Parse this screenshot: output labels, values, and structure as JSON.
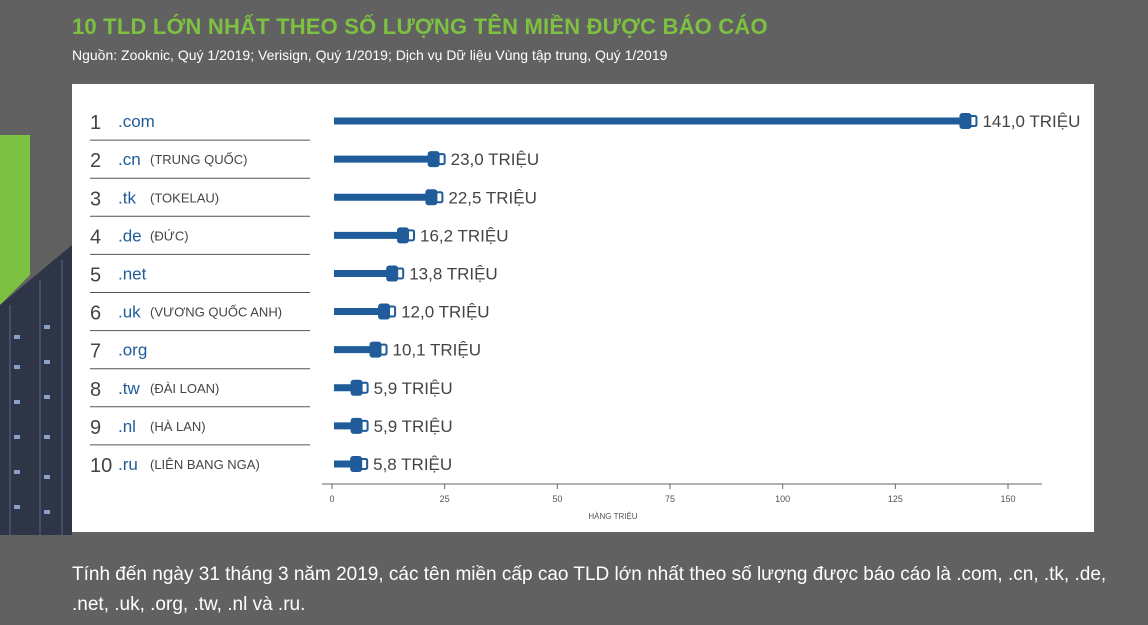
{
  "title": "10 TLD LỚN NHẤT THEO SỐ LƯỢNG TÊN MIỀN ĐƯỢC BÁO CÁO",
  "subtitle": "Nguồn: Zooknic, Quý 1/2019; Verisign, Quý 1/2019; Dịch vụ Dữ liệu Vùng tập trung, Quý 1/2019",
  "caption": "Tính đến ngày 31 tháng 3 năm 2019, các tên miền cấp cao TLD lớn nhất theo số lượng được báo cáo là .com, .cn, .tk, .de, .net, .uk, .org, .tw, .nl và .ru.",
  "colors": {
    "title": "#7dc142",
    "bar": "#1f5c99",
    "rank": "#444444",
    "tld": "#1f5c99"
  },
  "chart_data": {
    "type": "bar",
    "orientation": "horizontal",
    "xlabel": "HÀNG TRIỆU",
    "xlim": [
      0,
      150
    ],
    "xticks": [
      0,
      25,
      50,
      75,
      100,
      125,
      150
    ],
    "rows": [
      {
        "rank": "1",
        "tld": ".com",
        "country": "",
        "value": 141.0,
        "label": "141,0 TRIỆU"
      },
      {
        "rank": "2",
        "tld": ".cn",
        "country": "(TRUNG QUỐC)",
        "value": 23.0,
        "label": "23,0 TRIỆU"
      },
      {
        "rank": "3",
        "tld": ".tk",
        "country": "(TOKELAU)",
        "value": 22.5,
        "label": "22,5 TRIỆU"
      },
      {
        "rank": "4",
        "tld": ".de",
        "country": "(ĐỨC)",
        "value": 16.2,
        "label": "16,2 TRIỆU"
      },
      {
        "rank": "5",
        "tld": ".net",
        "country": "",
        "value": 13.8,
        "label": "13,8 TRIỆU"
      },
      {
        "rank": "6",
        "tld": ".uk",
        "country": "(VƯƠNG QUỐC ANH)",
        "value": 12.0,
        "label": "12,0 TRIỆU"
      },
      {
        "rank": "7",
        "tld": ".org",
        "country": "",
        "value": 10.1,
        "label": "10,1 TRIỆU"
      },
      {
        "rank": "8",
        "tld": ".tw",
        "country": "(ĐÀI LOAN)",
        "value": 5.9,
        "label": "5,9 TRIỆU"
      },
      {
        "rank": "9",
        "tld": ".nl",
        "country": "(HÀ LAN)",
        "value": 5.9,
        "label": "5,9 TRIỆU"
      },
      {
        "rank": "10",
        "tld": ".ru",
        "country": "(LIÊN BANG NGA)",
        "value": 5.8,
        "label": "5,8 TRIỆU"
      }
    ]
  }
}
